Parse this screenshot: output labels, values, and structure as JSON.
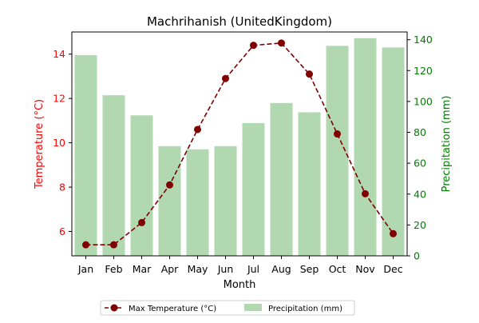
{
  "chart_data": {
    "type": "bar+line",
    "title": "Machrihanish (UnitedKingdom)",
    "xlabel": "Month",
    "ylabel_left": "Temperature (°C)",
    "ylabel_right": "Precipitation (mm)",
    "categories": [
      "Jan",
      "Feb",
      "Mar",
      "Apr",
      "May",
      "Jun",
      "Jul",
      "Aug",
      "Sep",
      "Oct",
      "Nov",
      "Dec"
    ],
    "y_left": {
      "lim": [
        4.9,
        15.0
      ],
      "ticks": [
        6,
        8,
        10,
        12,
        14
      ],
      "color": "#ff0000"
    },
    "y_right": {
      "lim": [
        0,
        145
      ],
      "ticks": [
        0,
        20,
        40,
        60,
        80,
        100,
        120,
        140
      ],
      "color": "#008000"
    },
    "series": [
      {
        "name": "Max Temperature (°C)",
        "type": "line",
        "axis": "left",
        "color": "#800000",
        "style": "dashed",
        "marker": "circle",
        "values": [
          5.4,
          5.4,
          6.4,
          8.1,
          10.6,
          12.9,
          14.4,
          14.5,
          13.1,
          10.4,
          7.7,
          5.9
        ]
      },
      {
        "name": "Precipitation (mm)",
        "type": "bar",
        "axis": "right",
        "color": "#b2d8b2",
        "values": [
          130,
          104,
          91,
          71,
          69,
          71,
          86,
          99,
          93,
          136,
          141,
          135
        ]
      }
    ],
    "legend": {
      "position": "bottom-center",
      "entries": [
        "Max Temperature (°C)",
        "Precipitation (mm)"
      ]
    },
    "grid": false
  }
}
